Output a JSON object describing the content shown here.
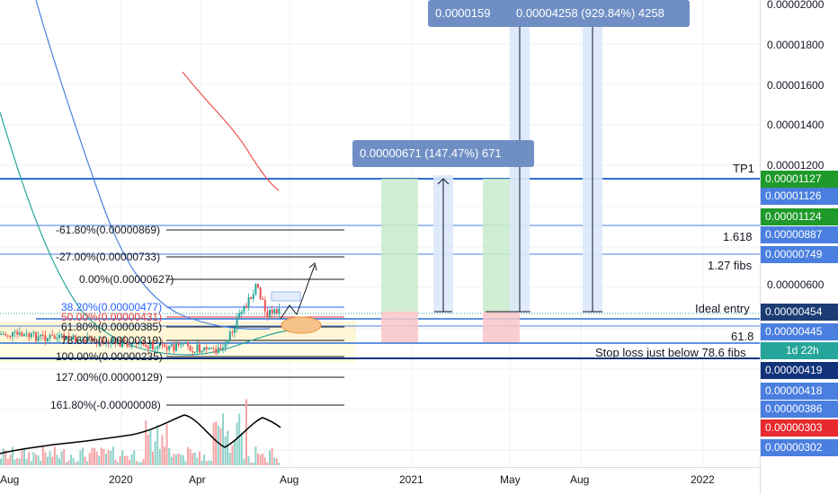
{
  "chart_data": {
    "type": "candlestick",
    "y_axis_ticks": [
      "0.00002000",
      "0.00001800",
      "0.00001600",
      "0.00001400",
      "0.00001200",
      "0.00000600"
    ],
    "x_axis_ticks": [
      "Aug",
      "2020",
      "Apr",
      "Aug",
      "2021",
      "May",
      "Aug",
      "2022"
    ],
    "price_tags": [
      {
        "value": "0.00001127",
        "color": "#1e9a2a"
      },
      {
        "value": "0.00001126",
        "color": "#4a7fe0"
      },
      {
        "value": "0.00001124",
        "color": "#1e9a2a"
      },
      {
        "value": "0.00000887",
        "color": "#4a7fe0"
      },
      {
        "value": "0.00000749",
        "color": "#4a7fe0"
      },
      {
        "value": "0.00000454",
        "color": "#1c3d74"
      },
      {
        "value": "0.00000445",
        "color": "#4a7fe0"
      },
      {
        "value": "1d 22h",
        "color": "#26a69a"
      },
      {
        "value": "0.00000419",
        "color": "#12327a"
      },
      {
        "value": "0.00000418",
        "color": "#4a7fe0"
      },
      {
        "value": "0.00000386",
        "color": "#4a7fe0"
      },
      {
        "value": "0.00000303",
        "color": "#e8292e"
      },
      {
        "value": "0.00000302",
        "color": "#4a7fe0"
      }
    ],
    "horizontal_labels": [
      "TP1",
      "1.618",
      "1.27 fibs",
      "Ideal entry",
      "61.8",
      "Stop loss just below 78.6 fibs"
    ],
    "fib_levels": [
      {
        "label": "-61.80%(0.00000869)",
        "color": "#131722"
      },
      {
        "label": "-27.00%(0.00000733)",
        "color": "#131722"
      },
      {
        "label": "0.00%(0.00000627)",
        "color": "#131722"
      },
      {
        "label": "38.20%(0.00000477)",
        "color": "#2962ff"
      },
      {
        "label": "50.00%(0.00000431)",
        "color": "#e53935"
      },
      {
        "label": "61.80%(0.00000385)",
        "color": "#131722"
      },
      {
        "label": "78.60%(0.00000319)",
        "color": "#131722"
      },
      {
        "label": "100.00%(0.00000235)",
        "color": "#131722"
      },
      {
        "label": "127.00%(0.00000129)",
        "color": "#131722"
      },
      {
        "label": "161.80%(-0.00000008)",
        "color": "#131722"
      }
    ],
    "measure_labels": [
      "0.00000671 (147.47%) 671",
      "0.0000159",
      "0.00004258 (929.84%) 4258"
    ]
  }
}
